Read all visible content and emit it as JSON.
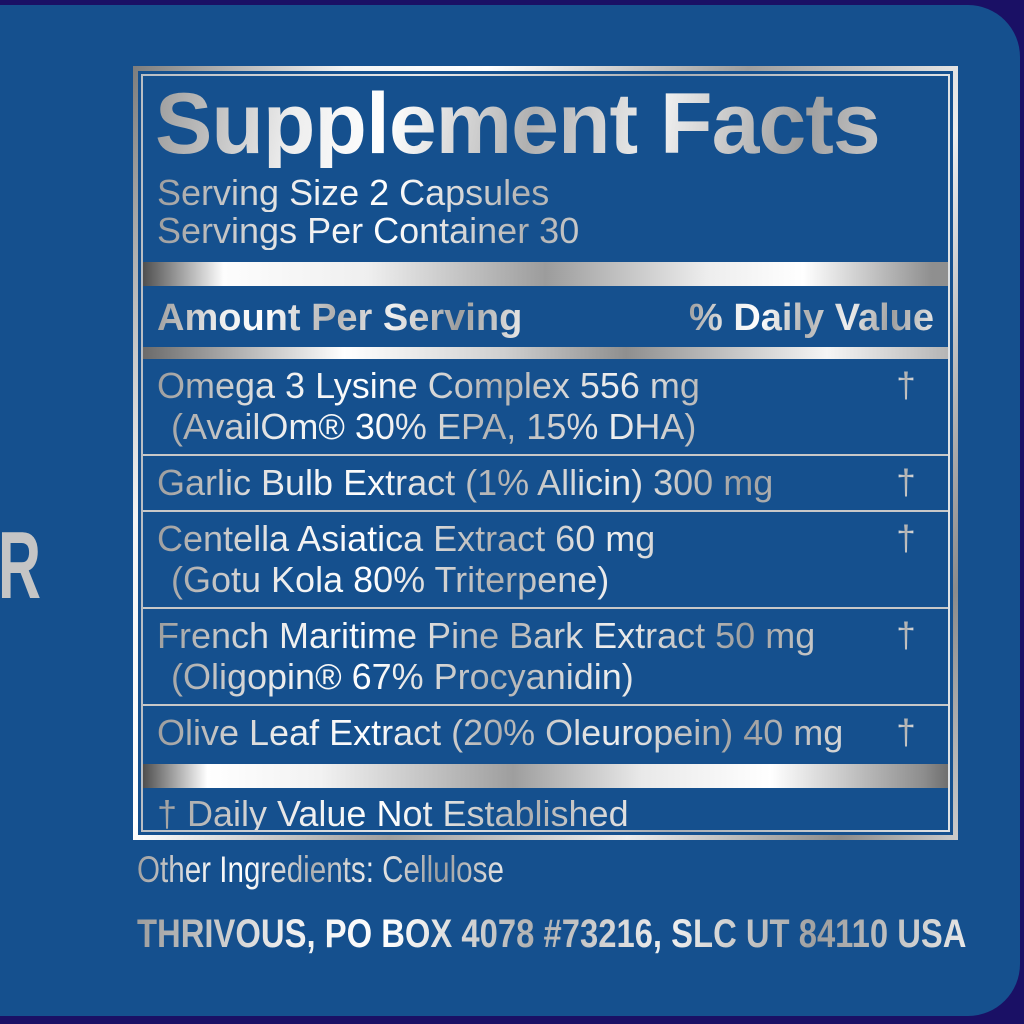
{
  "colors": {
    "label_blue": "#15508e",
    "background_navy": "#1a1065",
    "metallic_silver": "#c9c9c9"
  },
  "spine_letter": "R",
  "panel": {
    "title": "Supplement Facts",
    "serving_size": "Serving Size 2 Capsules",
    "servings_per_container": "Servings Per Container 30",
    "amount_header": "Amount Per Serving",
    "dv_header": "% Daily Value",
    "rows": [
      {
        "line1": "Omega 3 Lysine Complex 556 mg",
        "line2": "(AvailOm® 30% EPA, 15% DHA)",
        "dv": "†"
      },
      {
        "line1": "Garlic Bulb Extract (1% Allicin) 300 mg",
        "dv": "†"
      },
      {
        "line1": "Centella Asiatica Extract 60 mg",
        "line2": "(Gotu Kola 80% Triterpene)",
        "dv": "†"
      },
      {
        "line1": "French Maritime Pine Bark Extract 50 mg",
        "line2": "(Oligopin® 67% Procyanidin)",
        "dv": "†"
      },
      {
        "line1": "Olive Leaf Extract (20% Oleuropein) 40 mg",
        "dv": "†"
      }
    ],
    "footnote": "† Daily Value Not Established"
  },
  "other_ingredients": "Other Ingredients: Cellulose",
  "address": "THRIVOUS, PO BOX 4078 #73216, SLC UT 84110 USA"
}
